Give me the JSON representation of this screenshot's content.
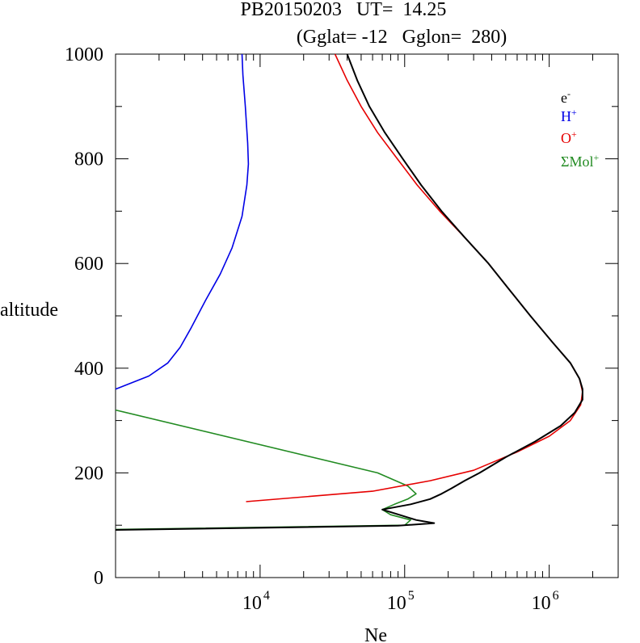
{
  "chart_data": {
    "type": "line",
    "title": "PB20150203   UT=  14.25",
    "subtitle": "(Gglat= -12   Gglon=  280)",
    "xlabel": "Ne",
    "ylabel": "altitude",
    "x_scale": "log",
    "xlim": [
      1000,
      3000000
    ],
    "ylim": [
      0,
      1000
    ],
    "x_ticks": [
      {
        "value": 10000,
        "base": "10",
        "exp": "4"
      },
      {
        "value": 100000,
        "base": "10",
        "exp": "5"
      },
      {
        "value": 1000000,
        "base": "10",
        "exp": "6"
      }
    ],
    "y_ticks": [
      0,
      200,
      400,
      600,
      800,
      1000
    ],
    "legend_position": "top-right",
    "series": [
      {
        "name": "e-",
        "label_base": "e",
        "label_sup": "-",
        "color": "#000000",
        "points": [
          [
            1000,
            91
          ],
          [
            90000,
            99
          ],
          [
            160000,
            104
          ],
          [
            120000,
            110
          ],
          [
            70000,
            130
          ],
          [
            110000,
            140
          ],
          [
            150000,
            150
          ],
          [
            180000,
            160
          ],
          [
            210000,
            170
          ],
          [
            260000,
            185
          ],
          [
            330000,
            200
          ],
          [
            500000,
            230
          ],
          [
            800000,
            260
          ],
          [
            1200000,
            290
          ],
          [
            1500000,
            315
          ],
          [
            1700000,
            340
          ],
          [
            1700000,
            360
          ],
          [
            1620000,
            380
          ],
          [
            1400000,
            410
          ],
          [
            1050000,
            450
          ],
          [
            740000,
            500
          ],
          [
            530000,
            550
          ],
          [
            380000,
            600
          ],
          [
            260000,
            650
          ],
          [
            180000,
            700
          ],
          [
            130000,
            750
          ],
          [
            97000,
            800
          ],
          [
            73000,
            850
          ],
          [
            57000,
            900
          ],
          [
            47000,
            950
          ],
          [
            40000,
            1000
          ]
        ]
      },
      {
        "name": "H+",
        "label_base": "H",
        "label_sup": "+",
        "color": "#0000e6",
        "points": [
          [
            1000,
            360
          ],
          [
            1700,
            385
          ],
          [
            2300,
            410
          ],
          [
            2800,
            440
          ],
          [
            3300,
            475
          ],
          [
            4200,
            530
          ],
          [
            5300,
            580
          ],
          [
            6400,
            630
          ],
          [
            7500,
            690
          ],
          [
            8100,
            750
          ],
          [
            8300,
            790
          ],
          [
            8200,
            830
          ],
          [
            7900,
            900
          ],
          [
            7600,
            960
          ],
          [
            7500,
            1000
          ]
        ]
      },
      {
        "name": "O+",
        "label_base": "O",
        "label_sup": "+",
        "color": "#e60000",
        "points": [
          [
            8000,
            145
          ],
          [
            60000,
            165
          ],
          [
            150000,
            185
          ],
          [
            300000,
            205
          ],
          [
            600000,
            240
          ],
          [
            1000000,
            270
          ],
          [
            1400000,
            300
          ],
          [
            1650000,
            330
          ],
          [
            1700000,
            355
          ],
          [
            1620000,
            380
          ],
          [
            1400000,
            410
          ],
          [
            1050000,
            450
          ],
          [
            740000,
            500
          ],
          [
            530000,
            550
          ],
          [
            380000,
            600
          ],
          [
            260000,
            650
          ],
          [
            175000,
            700
          ],
          [
            122000,
            750
          ],
          [
            89000,
            800
          ],
          [
            65000,
            850
          ],
          [
            50000,
            900
          ],
          [
            40000,
            950
          ],
          [
            33000,
            1000
          ]
        ]
      },
      {
        "name": "ΣMol+",
        "label_base": "ΣMol",
        "label_sup": "+",
        "color": "#228b22",
        "points": [
          [
            1000,
            320
          ],
          [
            65000,
            200
          ],
          [
            105000,
            175
          ],
          [
            120000,
            160
          ],
          [
            105000,
            150
          ],
          [
            85000,
            140
          ],
          [
            70000,
            130
          ],
          [
            80000,
            120
          ],
          [
            110000,
            110
          ],
          [
            100000,
            100
          ],
          [
            1000,
            92
          ]
        ]
      }
    ]
  }
}
